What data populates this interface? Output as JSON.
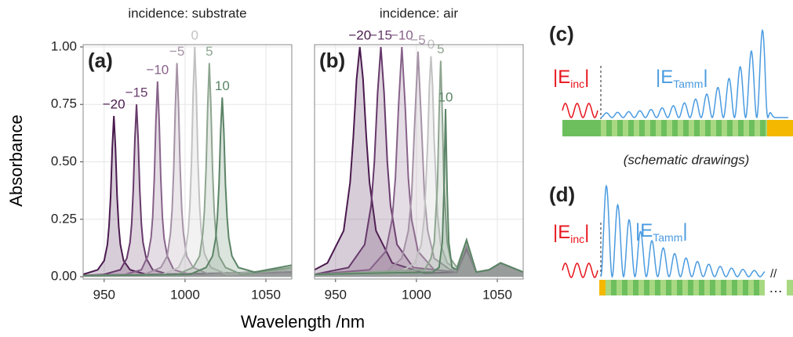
{
  "chart_data": [
    {
      "type": "line",
      "title": "incidence: substrate",
      "panel_label": "(a)",
      "ylabel": "Absorbance",
      "xlabel": "Wavelength /nm",
      "xlim": [
        937,
        1066
      ],
      "ylim": [
        -0.01,
        1.01
      ],
      "xticks": [
        950,
        1000,
        1050
      ],
      "yticks": [
        {
          "value": 0,
          "label": "0.00"
        },
        {
          "value": 0.25,
          "label": "0.25"
        },
        {
          "value": 0.5,
          "label": "0.50"
        },
        {
          "value": 0.75,
          "label": "0.75"
        },
        {
          "value": 1,
          "label": "1.00"
        }
      ],
      "grid": true,
      "area": true,
      "series": [
        {
          "name": "−20",
          "color": "#4a1a4e",
          "x": [
            937,
            946,
            950,
            952,
            953,
            954,
            955,
            956,
            957,
            958,
            959,
            960,
            962,
            966,
            976,
            1066
          ],
          "values": [
            0.01,
            0.03,
            0.07,
            0.14,
            0.22,
            0.35,
            0.56,
            0.7,
            0.56,
            0.35,
            0.22,
            0.14,
            0.07,
            0.03,
            0.01,
            0.02
          ]
        },
        {
          "name": "−15",
          "color": "#673a6b",
          "x": [
            937,
            950,
            960,
            964,
            966,
            967,
            968,
            969,
            970,
            971,
            972,
            973,
            974,
            976,
            980,
            990,
            1066
          ],
          "values": [
            0.005,
            0.01,
            0.03,
            0.08,
            0.15,
            0.23,
            0.38,
            0.6,
            0.75,
            0.6,
            0.38,
            0.23,
            0.15,
            0.08,
            0.03,
            0.01,
            0.02
          ]
        },
        {
          "name": "−10",
          "color": "#87628a",
          "x": [
            937,
            963,
            973,
            977,
            979,
            980,
            981,
            982,
            983,
            984,
            985,
            986,
            987,
            989,
            993,
            1003,
            1066
          ],
          "values": [
            0.005,
            0.01,
            0.03,
            0.09,
            0.17,
            0.26,
            0.43,
            0.68,
            0.85,
            0.68,
            0.43,
            0.26,
            0.17,
            0.09,
            0.03,
            0.01,
            0.02
          ]
        },
        {
          "name": "−5",
          "color": "#a592a6",
          "x": [
            937,
            975,
            985,
            989,
            991,
            992,
            993,
            994,
            995,
            996,
            997,
            998,
            999,
            1001,
            1005,
            1015,
            1066
          ],
          "values": [
            0.005,
            0.01,
            0.04,
            0.09,
            0.19,
            0.29,
            0.47,
            0.74,
            0.93,
            0.74,
            0.47,
            0.29,
            0.19,
            0.09,
            0.04,
            0.01,
            0.03
          ]
        },
        {
          "name": "0",
          "color": "#c2c2c2",
          "x": [
            937,
            986,
            996,
            1000,
            1002,
            1003,
            1004,
            1005,
            1006,
            1007,
            1008,
            1009,
            1010,
            1012,
            1016,
            1026,
            1066
          ],
          "values": [
            0.005,
            0.01,
            0.04,
            0.1,
            0.2,
            0.31,
            0.5,
            0.8,
            1.0,
            0.8,
            0.5,
            0.31,
            0.2,
            0.1,
            0.04,
            0.01,
            0.03
          ]
        },
        {
          "name": "5",
          "color": "#8ea590",
          "x": [
            937,
            995,
            1005,
            1009,
            1011,
            1012,
            1013,
            1014,
            1015,
            1016,
            1017,
            1018,
            1019,
            1021,
            1025,
            1035,
            1066
          ],
          "values": [
            0.005,
            0.01,
            0.04,
            0.09,
            0.19,
            0.29,
            0.47,
            0.74,
            0.93,
            0.74,
            0.47,
            0.29,
            0.19,
            0.09,
            0.04,
            0.01,
            0.04
          ]
        },
        {
          "name": "10",
          "color": "#5b8466",
          "x": [
            937,
            1003,
            1013,
            1017,
            1019,
            1020,
            1021,
            1022,
            1023,
            1024,
            1025,
            1026,
            1027,
            1029,
            1033,
            1043,
            1066
          ],
          "values": [
            0.005,
            0.01,
            0.04,
            0.09,
            0.17,
            0.26,
            0.4,
            0.63,
            0.78,
            0.63,
            0.4,
            0.26,
            0.17,
            0.09,
            0.04,
            0.02,
            0.05
          ]
        }
      ]
    },
    {
      "type": "line",
      "title": "incidence: air",
      "panel_label": "(b)",
      "xlim": [
        937,
        1066
      ],
      "ylim": [
        -0.01,
        1.01
      ],
      "xticks": [
        950,
        1000,
        1050
      ],
      "yticks": [
        0,
        0.25,
        0.5,
        0.75,
        1
      ],
      "ytick_labels": false,
      "grid": true,
      "area": true,
      "series": [
        {
          "name": "−20",
          "color": "#4a1a4e",
          "x": [
            937,
            945,
            955,
            959,
            961,
            963,
            965,
            967,
            969,
            971,
            975,
            985,
            1005,
            1025,
            1031,
            1037,
            1045,
            1052,
            1066
          ],
          "values": [
            0.03,
            0.06,
            0.2,
            0.41,
            0.61,
            0.86,
            1.0,
            0.86,
            0.61,
            0.41,
            0.2,
            0.06,
            0.015,
            0.02,
            0.12,
            0.02,
            0.03,
            0.06,
            0.02
          ]
        },
        {
          "name": "−15",
          "color": "#673a6b",
          "x": [
            937,
            958,
            968,
            972,
            974,
            976,
            978,
            980,
            982,
            984,
            988,
            998,
            1025,
            1031,
            1037,
            1045,
            1052,
            1066
          ],
          "values": [
            0.01,
            0.04,
            0.14,
            0.31,
            0.5,
            0.8,
            1.0,
            0.8,
            0.5,
            0.31,
            0.14,
            0.04,
            0.02,
            0.13,
            0.02,
            0.03,
            0.06,
            0.02
          ]
        },
        {
          "name": "−10",
          "color": "#87628a",
          "x": [
            937,
            971,
            981,
            985,
            987,
            989,
            991,
            993,
            995,
            997,
            1001,
            1011,
            1025,
            1031,
            1037,
            1045,
            1052,
            1066
          ],
          "values": [
            0.01,
            0.03,
            0.11,
            0.25,
            0.43,
            0.75,
            1.0,
            0.75,
            0.43,
            0.25,
            0.11,
            0.03,
            0.02,
            0.14,
            0.02,
            0.03,
            0.06,
            0.02
          ]
        },
        {
          "name": "−5",
          "color": "#a592a6",
          "x": [
            937,
            981,
            991,
            995,
            997,
            999,
            1001,
            1003,
            1005,
            1007,
            1011,
            1021,
            1025,
            1031,
            1037,
            1045,
            1052,
            1066
          ],
          "values": [
            0.01,
            0.02,
            0.08,
            0.2,
            0.35,
            0.68,
            0.98,
            0.68,
            0.35,
            0.2,
            0.08,
            0.03,
            0.03,
            0.15,
            0.02,
            0.03,
            0.06,
            0.02
          ]
        },
        {
          "name": "0",
          "color": "#c2c2c2",
          "x": [
            937,
            989,
            999,
            1003,
            1005,
            1007,
            1008,
            1009,
            1010,
            1011,
            1013,
            1015,
            1019,
            1025,
            1031,
            1037,
            1045,
            1052,
            1066
          ],
          "values": [
            0.01,
            0.015,
            0.06,
            0.14,
            0.27,
            0.59,
            0.83,
            0.96,
            0.83,
            0.59,
            0.27,
            0.14,
            0.06,
            0.03,
            0.15,
            0.02,
            0.03,
            0.06,
            0.02
          ]
        },
        {
          "name": "5",
          "color": "#8ea590",
          "x": [
            937,
            1005,
            1009,
            1011,
            1013,
            1014,
            1015,
            1016,
            1017,
            1019,
            1021,
            1025,
            1031,
            1037,
            1045,
            1052,
            1066
          ],
          "values": [
            0.01,
            0.03,
            0.08,
            0.15,
            0.4,
            0.71,
            0.94,
            0.71,
            0.4,
            0.15,
            0.08,
            0.04,
            0.16,
            0.02,
            0.03,
            0.06,
            0.02
          ]
        },
        {
          "name": "10",
          "color": "#5b8466",
          "x": [
            937,
            1010,
            1014,
            1016,
            1017,
            1018,
            1019,
            1020,
            1022,
            1025,
            1031,
            1037,
            1045,
            1052,
            1066
          ],
          "values": [
            0.01,
            0.02,
            0.04,
            0.15,
            0.37,
            0.73,
            0.37,
            0.15,
            0.04,
            0.03,
            0.16,
            0.02,
            0.03,
            0.06,
            0.02
          ]
        }
      ]
    }
  ],
  "schematics": {
    "c": {
      "label": "(c)",
      "e_inc": {
        "open": "|E",
        "sub": "inc",
        "close": "|"
      },
      "e_tamm": {
        "open": "|E",
        "sub": "Tamm",
        "close": "|"
      },
      "note": "(schematic drawings)"
    },
    "d": {
      "label": "(d)",
      "e_inc": {
        "open": "|E",
        "sub": "inc",
        "close": "|"
      },
      "e_tamm": {
        "open": "|E",
        "sub": "Tamm",
        "close": "|"
      },
      "break": "//",
      "ellipsis": "…"
    }
  }
}
